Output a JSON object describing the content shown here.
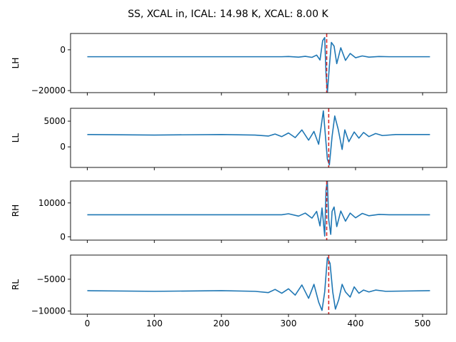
{
  "chart_data": {
    "type": "line",
    "title": "SS, XCAL in, ICAL: 14.98 K, XCAL: 8.00 K",
    "x_range": [
      0,
      511
    ],
    "xlim": [
      -25,
      536
    ],
    "x_ticks": [
      0,
      100,
      200,
      300,
      400,
      500
    ],
    "x_tick_labels": [
      "0",
      "100",
      "200",
      "300",
      "400",
      "500"
    ],
    "line_color": "#1f77b4",
    "marker_color": "#d62728",
    "panels": [
      {
        "ylabel": "LH",
        "ylim": [
          -21000,
          8000
        ],
        "y_ticks": [
          0,
          -20000
        ],
        "y_tick_labels": [
          "0",
          "−20000"
        ],
        "baseline": -3400,
        "points": [
          [
            0,
            -3400
          ],
          [
            290,
            -3400
          ],
          [
            300,
            -3300
          ],
          [
            315,
            -3600
          ],
          [
            325,
            -3200
          ],
          [
            335,
            -3700
          ],
          [
            342,
            -2600
          ],
          [
            347,
            -5000
          ],
          [
            351,
            4500
          ],
          [
            354,
            6000
          ],
          [
            356,
            -12000
          ],
          [
            358,
            -21000
          ],
          [
            361,
            -8000
          ],
          [
            364,
            3600
          ],
          [
            368,
            1800
          ],
          [
            372,
            -6800
          ],
          [
            378,
            1000
          ],
          [
            385,
            -5200
          ],
          [
            392,
            -1800
          ],
          [
            400,
            -3900
          ],
          [
            410,
            -3000
          ],
          [
            420,
            -3600
          ],
          [
            435,
            -3300
          ],
          [
            450,
            -3400
          ],
          [
            511,
            -3400
          ]
        ],
        "marker_x": 357
      },
      {
        "ylabel": "LL",
        "ylim": [
          -4000,
          7500
        ],
        "y_ticks": [
          0,
          5000
        ],
        "y_tick_labels": [
          "0",
          "5000"
        ],
        "baseline": 2400,
        "points": [
          [
            0,
            2400
          ],
          [
            100,
            2300
          ],
          [
            200,
            2400
          ],
          [
            250,
            2300
          ],
          [
            270,
            2100
          ],
          [
            280,
            2500
          ],
          [
            290,
            2000
          ],
          [
            300,
            2700
          ],
          [
            310,
            1800
          ],
          [
            320,
            3300
          ],
          [
            330,
            1300
          ],
          [
            338,
            3000
          ],
          [
            345,
            500
          ],
          [
            352,
            7000
          ],
          [
            358,
            -2400
          ],
          [
            361,
            -3500
          ],
          [
            365,
            2000
          ],
          [
            369,
            6000
          ],
          [
            374,
            3500
          ],
          [
            380,
            -500
          ],
          [
            384,
            3300
          ],
          [
            390,
            1000
          ],
          [
            398,
            2900
          ],
          [
            405,
            1700
          ],
          [
            412,
            2800
          ],
          [
            420,
            2000
          ],
          [
            430,
            2600
          ],
          [
            440,
            2200
          ],
          [
            460,
            2400
          ],
          [
            511,
            2400
          ]
        ],
        "marker_x": 360
      },
      {
        "ylabel": "RH",
        "ylim": [
          -1000,
          16500
        ],
        "y_ticks": [
          0,
          10000
        ],
        "y_tick_labels": [
          "0",
          "10000"
        ],
        "baseline": 6500,
        "points": [
          [
            0,
            6500
          ],
          [
            290,
            6500
          ],
          [
            300,
            6800
          ],
          [
            315,
            6100
          ],
          [
            325,
            7000
          ],
          [
            335,
            5500
          ],
          [
            342,
            7500
          ],
          [
            347,
            3200
          ],
          [
            350,
            8500
          ],
          [
            352,
            4500
          ],
          [
            354,
            200
          ],
          [
            356,
            14000
          ],
          [
            358,
            16500
          ],
          [
            360,
            5000
          ],
          [
            363,
            700
          ],
          [
            365,
            7500
          ],
          [
            368,
            8800
          ],
          [
            372,
            3000
          ],
          [
            378,
            7600
          ],
          [
            385,
            4600
          ],
          [
            392,
            7000
          ],
          [
            400,
            5600
          ],
          [
            410,
            6900
          ],
          [
            420,
            6200
          ],
          [
            435,
            6600
          ],
          [
            450,
            6500
          ],
          [
            511,
            6500
          ]
        ],
        "marker_x": 357
      },
      {
        "ylabel": "RL",
        "ylim": [
          -10500,
          -1200
        ],
        "y_ticks": [
          -5000,
          -10000
        ],
        "y_tick_labels": [
          "−5000",
          "−10000"
        ],
        "baseline": -6800,
        "points": [
          [
            0,
            -6800
          ],
          [
            100,
            -6900
          ],
          [
            200,
            -6800
          ],
          [
            250,
            -6900
          ],
          [
            270,
            -7100
          ],
          [
            280,
            -6600
          ],
          [
            290,
            -7200
          ],
          [
            300,
            -6500
          ],
          [
            310,
            -7500
          ],
          [
            320,
            -5900
          ],
          [
            330,
            -8000
          ],
          [
            338,
            -5800
          ],
          [
            345,
            -8600
          ],
          [
            350,
            -9900
          ],
          [
            354,
            -7000
          ],
          [
            358,
            -1600
          ],
          [
            362,
            -2500
          ],
          [
            366,
            -7000
          ],
          [
            370,
            -9700
          ],
          [
            375,
            -8200
          ],
          [
            380,
            -5800
          ],
          [
            385,
            -7000
          ],
          [
            392,
            -7800
          ],
          [
            398,
            -6200
          ],
          [
            405,
            -7200
          ],
          [
            412,
            -6700
          ],
          [
            420,
            -7000
          ],
          [
            430,
            -6700
          ],
          [
            445,
            -6900
          ],
          [
            511,
            -6800
          ]
        ],
        "marker_x": 360
      }
    ]
  }
}
